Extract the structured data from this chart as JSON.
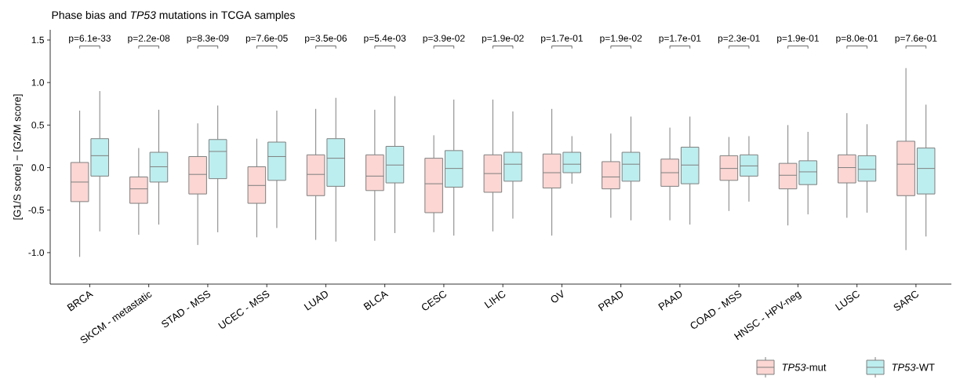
{
  "chart_data": {
    "type": "box",
    "title": "Phase bias and *TP53* mutations in TCGA samples",
    "ylabel": "[G1/S score] − [G2/M score]",
    "categories": [
      "BRCA",
      "SKCM - metastatic",
      "STAD - MSS",
      "UCEC - MSS",
      "LUAD",
      "BLCA",
      "CESC",
      "LIHC",
      "OV",
      "PRAD",
      "PAAD",
      "COAD - MSS",
      "HNSC - HPV-neg",
      "LUSC",
      "SARC"
    ],
    "ylim": [
      -1.37,
      1.62
    ],
    "yticks": [
      {
        "value": -1.0,
        "label": "-1.0"
      },
      {
        "value": -0.5,
        "label": "-0.5"
      },
      {
        "value": 0.0,
        "label": "0.0"
      },
      {
        "value": 0.5,
        "label": "0.5"
      },
      {
        "value": 1.0,
        "label": "1.0"
      },
      {
        "value": 1.5,
        "label": "1.5"
      }
    ],
    "legend": "bottom right",
    "annotations": [
      "p=6.1e-33",
      "p=2.2e-08",
      "p=8.3e-09",
      "p=7.6e-05",
      "p=3.5e-06",
      "p=5.4e-03",
      "p=3.9e-02",
      "p=1.9e-02",
      "p=1.7e-01",
      "p=1.9e-02",
      "p=1.7e-01",
      "p=2.3e-01",
      "p=1.9e-01",
      "p=8.0e-01",
      "p=7.6e-01"
    ],
    "series": [
      {
        "name": "*TP53*-mut",
        "color": "#fbd6d3",
        "boxes": [
          {
            "low": -1.05,
            "q1": -0.4,
            "median": -0.17,
            "q3": 0.06,
            "high": 0.67
          },
          {
            "low": -0.79,
            "q1": -0.42,
            "median": -0.25,
            "q3": -0.11,
            "high": 0.23
          },
          {
            "low": -0.91,
            "q1": -0.31,
            "median": -0.08,
            "q3": 0.13,
            "high": 0.52
          },
          {
            "low": -0.82,
            "q1": -0.42,
            "median": -0.21,
            "q3": 0.01,
            "high": 0.34
          },
          {
            "low": -0.85,
            "q1": -0.33,
            "median": -0.08,
            "q3": 0.15,
            "high": 0.69
          },
          {
            "low": -0.86,
            "q1": -0.27,
            "median": -0.1,
            "q3": 0.15,
            "high": 0.68
          },
          {
            "low": -0.76,
            "q1": -0.53,
            "median": -0.19,
            "q3": 0.11,
            "high": 0.38
          },
          {
            "low": -0.75,
            "q1": -0.29,
            "median": -0.07,
            "q3": 0.15,
            "high": 0.8
          },
          {
            "low": -0.8,
            "q1": -0.24,
            "median": -0.06,
            "q3": 0.16,
            "high": 0.69
          },
          {
            "low": -0.59,
            "q1": -0.25,
            "median": -0.11,
            "q3": 0.07,
            "high": 0.4
          },
          {
            "low": -0.62,
            "q1": -0.22,
            "median": -0.06,
            "q3": 0.1,
            "high": 0.47
          },
          {
            "low": -0.51,
            "q1": -0.15,
            "median": -0.01,
            "q3": 0.14,
            "high": 0.36
          },
          {
            "low": -0.68,
            "q1": -0.25,
            "median": -0.09,
            "q3": 0.05,
            "high": 0.5
          },
          {
            "low": -0.59,
            "q1": -0.18,
            "median": 0.0,
            "q3": 0.15,
            "high": 0.64
          },
          {
            "low": -0.97,
            "q1": -0.33,
            "median": 0.04,
            "q3": 0.31,
            "high": 1.17
          }
        ]
      },
      {
        "name": "*TP53*-WT",
        "color": "#bdeeef",
        "boxes": [
          {
            "low": -0.75,
            "q1": -0.1,
            "median": 0.14,
            "q3": 0.34,
            "high": 0.9
          },
          {
            "low": -0.67,
            "q1": -0.17,
            "median": 0.01,
            "q3": 0.18,
            "high": 0.68
          },
          {
            "low": -0.76,
            "q1": -0.13,
            "median": 0.19,
            "q3": 0.33,
            "high": 0.73
          },
          {
            "low": -0.71,
            "q1": -0.15,
            "median": 0.13,
            "q3": 0.3,
            "high": 0.67
          },
          {
            "low": -0.87,
            "q1": -0.22,
            "median": 0.11,
            "q3": 0.34,
            "high": 0.82
          },
          {
            "low": -0.77,
            "q1": -0.18,
            "median": 0.03,
            "q3": 0.25,
            "high": 0.84
          },
          {
            "low": -0.8,
            "q1": -0.23,
            "median": -0.01,
            "q3": 0.2,
            "high": 0.8
          },
          {
            "low": -0.6,
            "q1": -0.16,
            "median": 0.04,
            "q3": 0.18,
            "high": 0.66
          },
          {
            "low": -0.19,
            "q1": -0.06,
            "median": 0.04,
            "q3": 0.18,
            "high": 0.37
          },
          {
            "low": -0.62,
            "q1": -0.16,
            "median": 0.04,
            "q3": 0.18,
            "high": 0.6
          },
          {
            "low": -0.67,
            "q1": -0.19,
            "median": 0.03,
            "q3": 0.24,
            "high": 0.6
          },
          {
            "low": -0.4,
            "q1": -0.1,
            "median": 0.02,
            "q3": 0.15,
            "high": 0.37
          },
          {
            "low": -0.55,
            "q1": -0.2,
            "median": -0.05,
            "q3": 0.08,
            "high": 0.42
          },
          {
            "low": -0.53,
            "q1": -0.16,
            "median": -0.02,
            "q3": 0.14,
            "high": 0.51
          },
          {
            "low": -0.81,
            "q1": -0.31,
            "median": -0.01,
            "q3": 0.23,
            "high": 0.74
          }
        ]
      }
    ]
  }
}
